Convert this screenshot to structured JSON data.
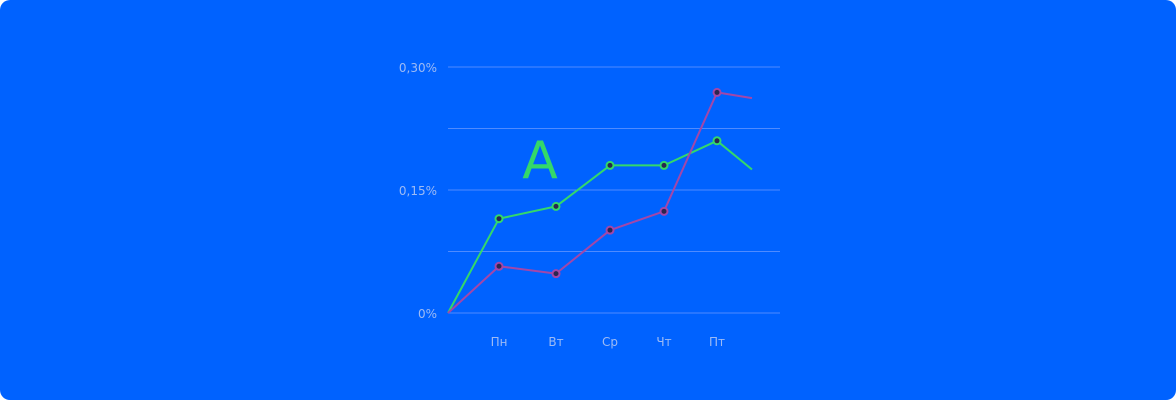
{
  "chart_data": {
    "type": "line",
    "annotation": "A",
    "categories": [
      "Пн",
      "Вт",
      "Ср",
      "Чт",
      "Пт"
    ],
    "y_tick_labels": [
      "0,30%",
      "0,15%",
      "0%"
    ],
    "ylim": [
      0,
      0.3
    ],
    "grid": true,
    "series": [
      {
        "color": "#34D86A",
        "start": 0,
        "values": [
          0.115,
          0.13,
          0.18,
          0.18,
          0.21
        ],
        "end": 0.175
      },
      {
        "color": "#A347A8",
        "start": 0,
        "values": [
          0.057,
          0.048,
          0.101,
          0.124,
          0.269
        ],
        "end": 0.262
      }
    ]
  }
}
